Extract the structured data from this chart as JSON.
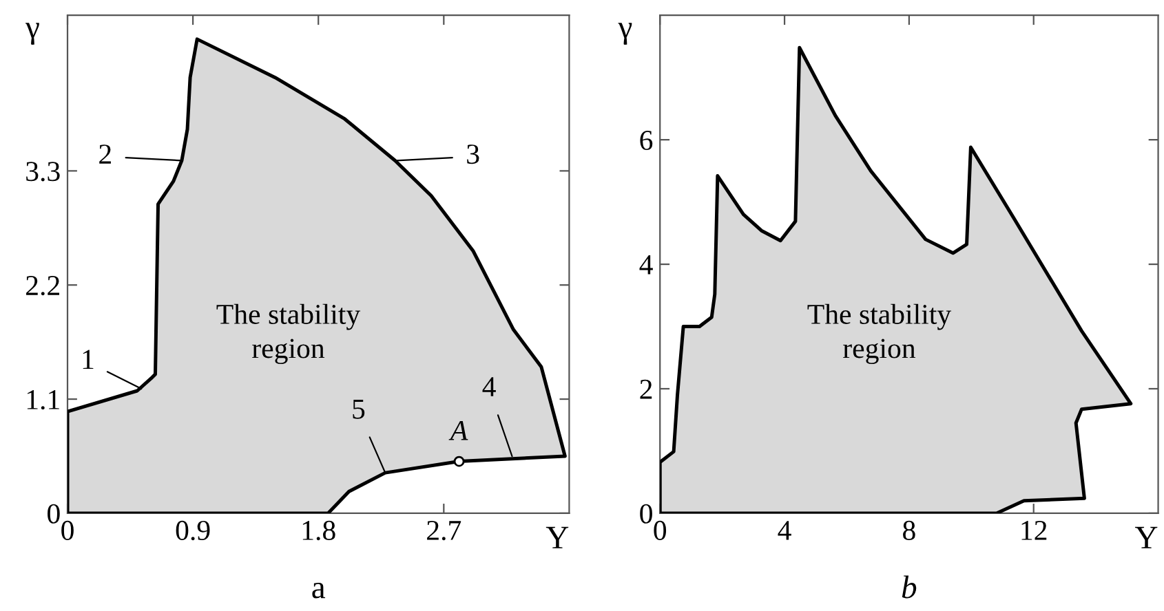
{
  "chart_data": [
    {
      "type": "area",
      "xlabel": "Υ",
      "ylabel": "γ",
      "xlim": [
        0,
        3.6
      ],
      "ylim": [
        0,
        4.8
      ],
      "xticks": [
        0,
        0.9,
        1.8,
        2.7
      ],
      "yticks": [
        0,
        1.1,
        2.2,
        3.3
      ],
      "grid": false,
      "legend": false,
      "series": [
        {
          "color": "#d9d9d9",
          "x": [
            0,
            0,
            0.5,
            0.6,
            0.63,
            0.65,
            0.76,
            0.82,
            0.86,
            0.88,
            0.93,
            1.49,
            1.99,
            2.35,
            2.61,
            2.91,
            3.2,
            3.4,
            3.57,
            2.81,
            2.28,
            2.02,
            1.87,
            0
          ],
          "values": [
            0,
            0.98,
            1.18,
            1.3,
            1.34,
            2.98,
            3.2,
            3.4,
            3.7,
            4.2,
            4.57,
            4.2,
            3.8,
            3.4,
            3.06,
            2.53,
            1.77,
            1.41,
            0.55,
            0.5,
            0.39,
            0.21,
            0,
            0
          ]
        },
        {
          "type": "scatter",
          "color": "#ffffff",
          "x": [
            2.81
          ],
          "values": [
            0.5
          ],
          "marker": "circle"
        }
      ],
      "annotations": [
        "The stability\nregion",
        "a",
        {
          "text": "1",
          "x": 0.53,
          "y": 1.2
        },
        {
          "text": "2",
          "x": 0.82,
          "y": 3.4
        },
        {
          "text": "3",
          "x": 2.36,
          "y": 3.4
        },
        {
          "text": "4",
          "x": 3.19,
          "y": 0.55
        },
        {
          "text": "5",
          "x": 2.28,
          "y": 0.39
        },
        {
          "text": "A",
          "x": 2.81,
          "y": 0.5
        }
      ]
    },
    {
      "type": "area",
      "xlabel": "Υ",
      "ylabel": "γ",
      "xlim": [
        0,
        16
      ],
      "ylim": [
        0,
        8
      ],
      "xticks": [
        0,
        4,
        8,
        12
      ],
      "yticks": [
        0,
        2,
        4,
        6
      ],
      "grid": false,
      "legend": false,
      "series": [
        {
          "color": "#d9d9d9",
          "x": [
            0,
            0,
            0.44,
            0.56,
            0.75,
            1.27,
            1.66,
            1.76,
            1.85,
            2.68,
            3.26,
            3.87,
            4.35,
            4.48,
            5.63,
            6.77,
            8.53,
            9.41,
            9.85,
            9.98,
            11.34,
            13.54,
            15.12,
            13.54,
            13.36,
            13.63,
            11.69,
            10.81,
            0
          ],
          "values": [
            0,
            0.82,
            0.99,
            1.9,
            3.0,
            3.0,
            3.15,
            3.52,
            5.42,
            4.8,
            4.54,
            4.38,
            4.69,
            7.48,
            6.39,
            5.5,
            4.4,
            4.18,
            4.32,
            5.88,
            4.76,
            2.93,
            1.76,
            1.67,
            1.45,
            0.24,
            0.2,
            0,
            0
          ]
        }
      ],
      "annotations": [
        "The stability\nregion",
        "b"
      ]
    }
  ]
}
